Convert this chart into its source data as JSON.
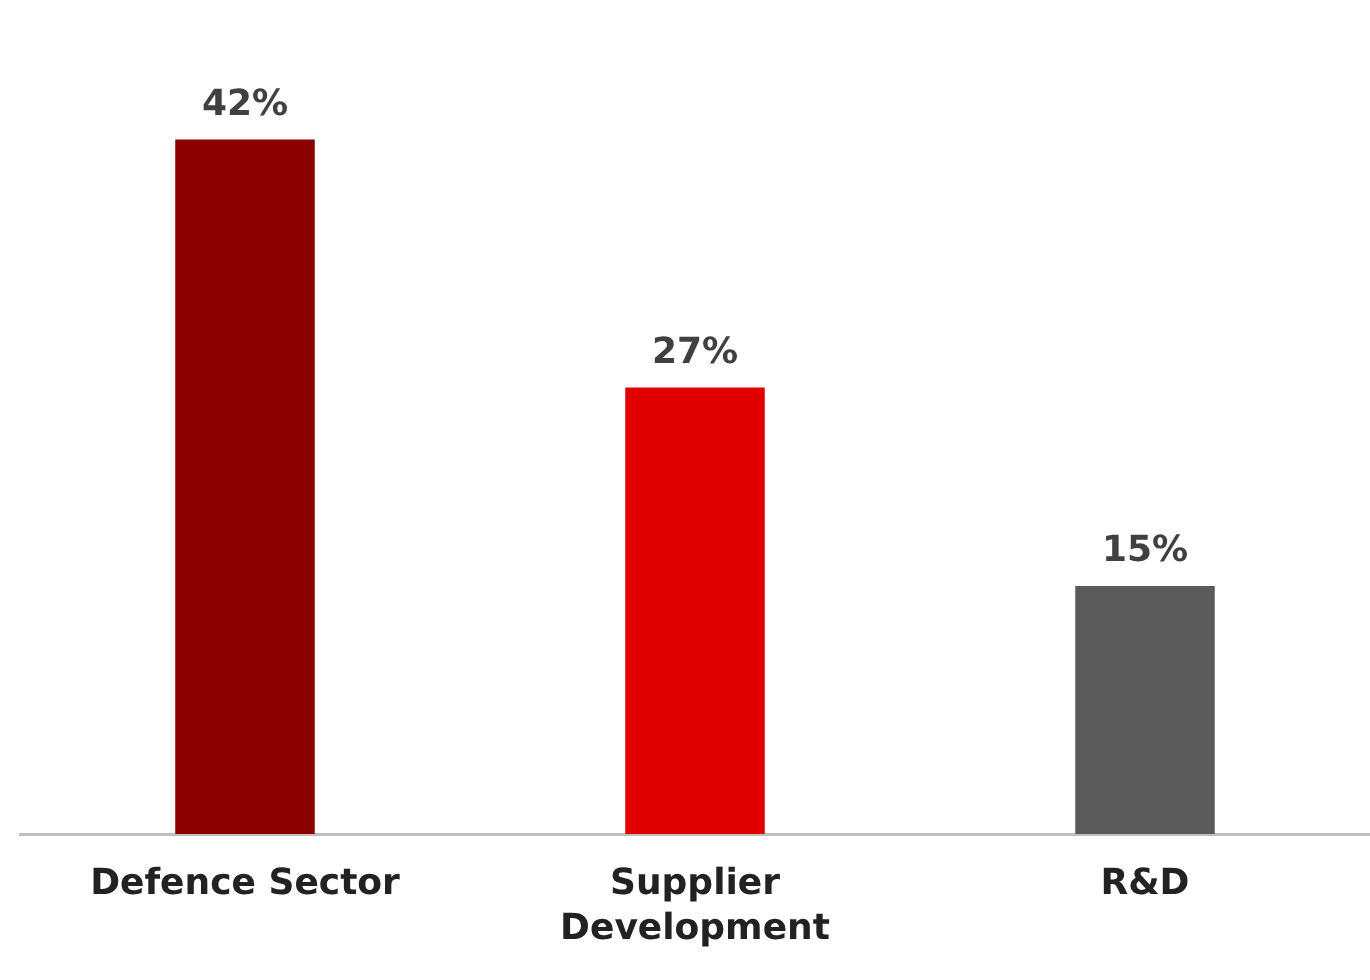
{
  "chart_data": {
    "type": "bar",
    "categories": [
      "Defence Sector",
      "Supplier Development",
      "R&D"
    ],
    "values": [
      42,
      27,
      15
    ],
    "colors": [
      "#8b0000",
      "#e00000",
      "#5a5a5a"
    ],
    "value_labels": [
      "42%",
      "27%",
      "15%"
    ]
  }
}
